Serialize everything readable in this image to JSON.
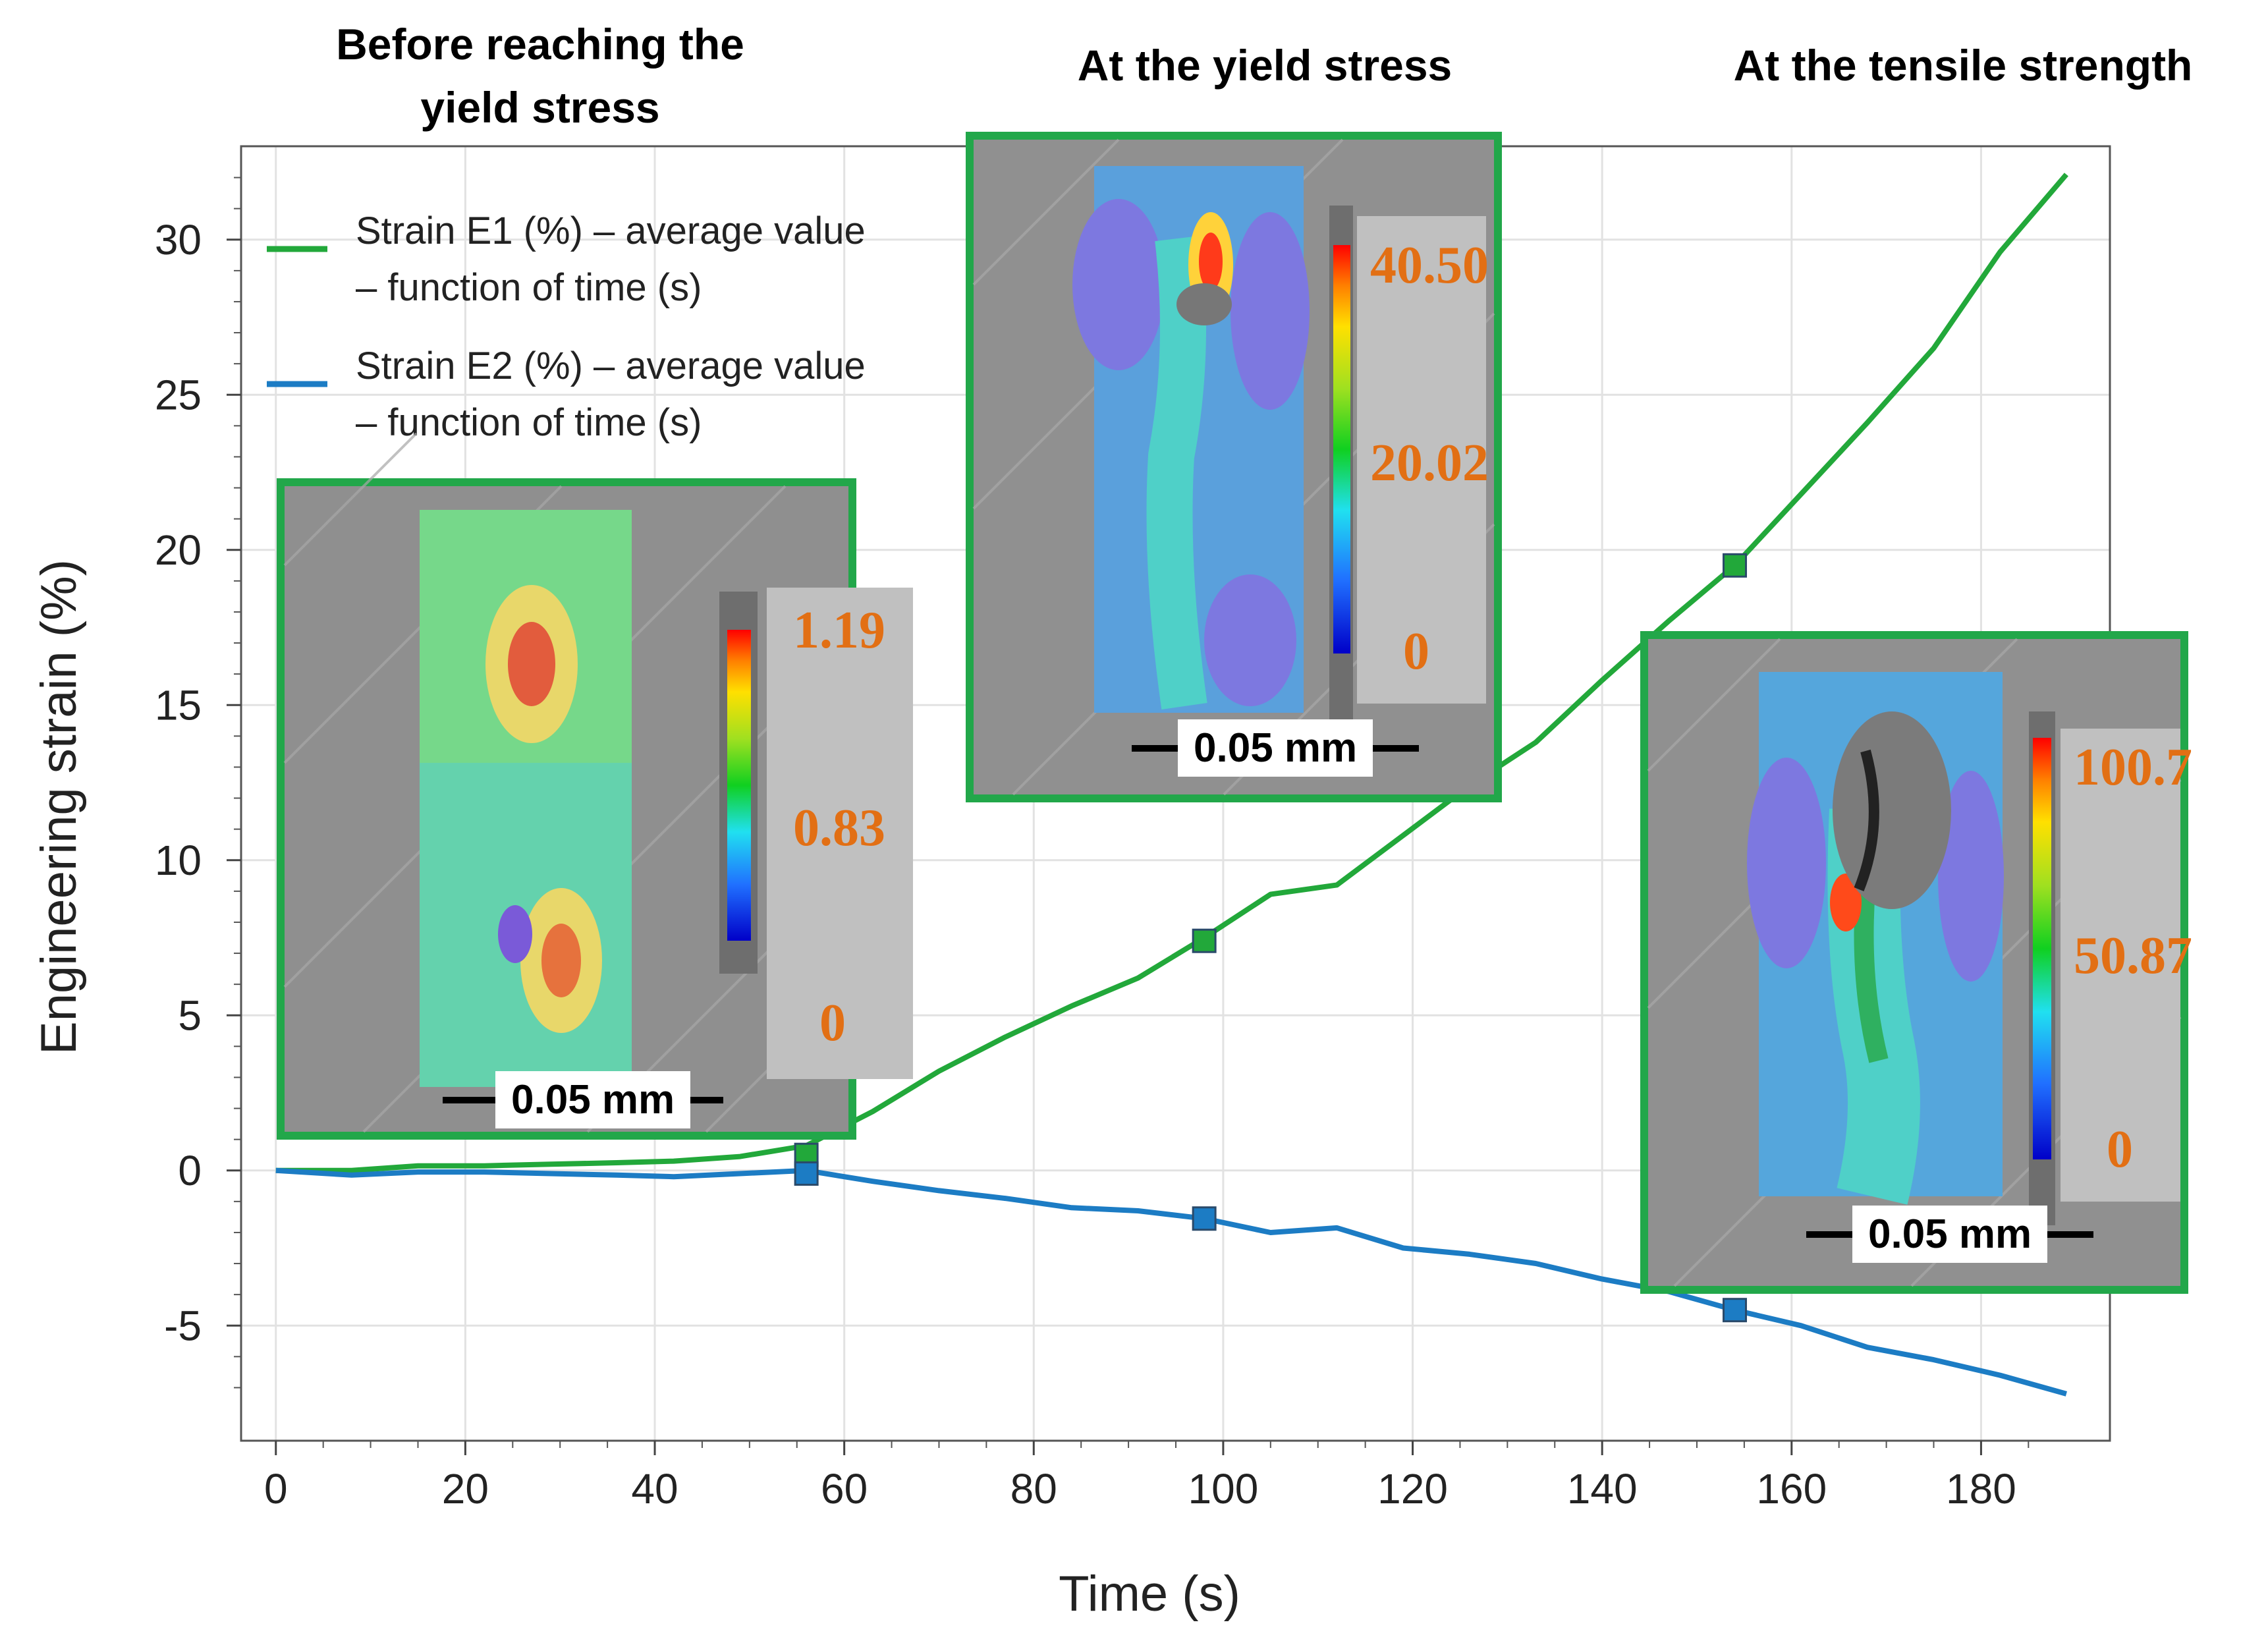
{
  "chart_data": {
    "type": "line",
    "xlabel": "Time (s)",
    "ylabel": "Engineering strain (%)",
    "xlim": [
      -2,
      192
    ],
    "ylim": [
      -7.5,
      32.5
    ],
    "xticks": [
      0,
      20,
      40,
      60,
      80,
      100,
      120,
      140,
      160,
      180
    ],
    "yticks": [
      -5,
      0,
      5,
      10,
      15,
      20,
      25,
      30
    ],
    "grid": true,
    "series": [
      {
        "name": "Strain E1 (%) – average value – function of time (s)",
        "legend_line1": "Strain E1 (%) – average value",
        "legend_line2": "– function of time (s)",
        "color": "#22a83a",
        "x": [
          0,
          8,
          15,
          22,
          29,
          36,
          42,
          49,
          56,
          63,
          70,
          77,
          84,
          91,
          98,
          105,
          112,
          119,
          126,
          133,
          140,
          147,
          154,
          161,
          168,
          175,
          182,
          189
        ],
        "y": [
          0,
          0,
          0.15,
          0.15,
          0.2,
          0.25,
          0.3,
          0.45,
          0.8,
          1.9,
          3.2,
          4.3,
          5.3,
          6.2,
          7.5,
          8.9,
          9.2,
          10.8,
          12.4,
          13.8,
          15.8,
          17.7,
          19.5,
          21.8,
          24.1,
          26.5,
          29.6,
          32.1
        ],
        "markers": [
          {
            "x": 56,
            "y": 0.5
          },
          {
            "x": 98,
            "y": 7.4
          },
          {
            "x": 154,
            "y": 19.5
          }
        ]
      },
      {
        "name": "Strain E2 (%) – average value – function of time (s)",
        "legend_line1": "Strain E2 (%) – average value",
        "legend_line2": "– function of time (s)",
        "color": "#1c7cc4",
        "x": [
          0,
          8,
          15,
          22,
          29,
          36,
          42,
          49,
          56,
          63,
          70,
          77,
          84,
          91,
          98,
          105,
          112,
          119,
          126,
          133,
          140,
          147,
          154,
          161,
          168,
          175,
          182,
          189
        ],
        "y": [
          0,
          -0.15,
          -0.05,
          -0.05,
          -0.1,
          -0.15,
          -0.2,
          -0.1,
          0,
          -0.35,
          -0.65,
          -0.9,
          -1.2,
          -1.3,
          -1.55,
          -2,
          -1.85,
          -2.5,
          -2.7,
          -3,
          -3.5,
          -3.9,
          -4.5,
          -5,
          -5.7,
          -6.1,
          -6.6,
          -7.2
        ],
        "markers": [
          {
            "x": 56,
            "y": -0.1
          },
          {
            "x": 98,
            "y": -1.55
          },
          {
            "x": 154,
            "y": -4.5
          }
        ]
      }
    ]
  },
  "stages": [
    {
      "title_line1": "Before reaching the",
      "title_line2": "yield stress",
      "cbar_max": "1.19",
      "cbar_mid": "0.83",
      "cbar_min": "0",
      "scale": "0.05 mm"
    },
    {
      "title_line1": "At the yield stress",
      "cbar_max": "40.50",
      "cbar_mid": "20.02",
      "cbar_min": "0",
      "scale": "0.05 mm"
    },
    {
      "title_line1": "At the tensile strength",
      "cbar_max": "100.7",
      "cbar_mid": "50.87",
      "cbar_min": "0",
      "scale": "0.05 mm"
    }
  ],
  "colors": {
    "frame": "#22a74a",
    "value_text": "#e26f14",
    "grid": "#e2e2e2"
  }
}
